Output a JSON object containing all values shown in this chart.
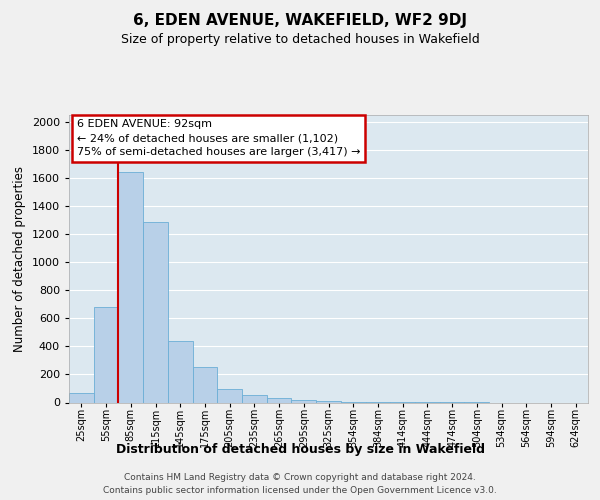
{
  "title": "6, EDEN AVENUE, WAKEFIELD, WF2 9DJ",
  "subtitle": "Size of property relative to detached houses in Wakefield",
  "xlabel": "Distribution of detached houses by size in Wakefield",
  "ylabel": "Number of detached properties",
  "footer_line1": "Contains HM Land Registry data © Crown copyright and database right 2024.",
  "footer_line2": "Contains public sector information licensed under the Open Government Licence v3.0.",
  "bar_labels": [
    "25sqm",
    "55sqm",
    "85sqm",
    "115sqm",
    "145sqm",
    "175sqm",
    "205sqm",
    "235sqm",
    "265sqm",
    "295sqm",
    "325sqm",
    "354sqm",
    "384sqm",
    "414sqm",
    "444sqm",
    "474sqm",
    "504sqm",
    "534sqm",
    "564sqm",
    "594sqm",
    "624sqm"
  ],
  "bar_values": [
    65,
    680,
    1640,
    1285,
    435,
    255,
    95,
    50,
    30,
    20,
    10,
    5,
    3,
    2,
    1,
    1,
    1,
    0,
    0,
    0,
    0
  ],
  "bar_color": "#b8d0e8",
  "bar_edge_color": "#6baed6",
  "background_color": "#dce8f0",
  "grid_color": "#ffffff",
  "red_line_x": 1.5,
  "annotation_line1": "6 EDEN AVENUE: 92sqm",
  "annotation_line2": "← 24% of detached houses are smaller (1,102)",
  "annotation_line3": "75% of semi-detached houses are larger (3,417) →",
  "annotation_box_color": "#ffffff",
  "annotation_box_edge": "#cc0000",
  "ylim": [
    0,
    2050
  ],
  "yticks": [
    0,
    200,
    400,
    600,
    800,
    1000,
    1200,
    1400,
    1600,
    1800,
    2000
  ]
}
